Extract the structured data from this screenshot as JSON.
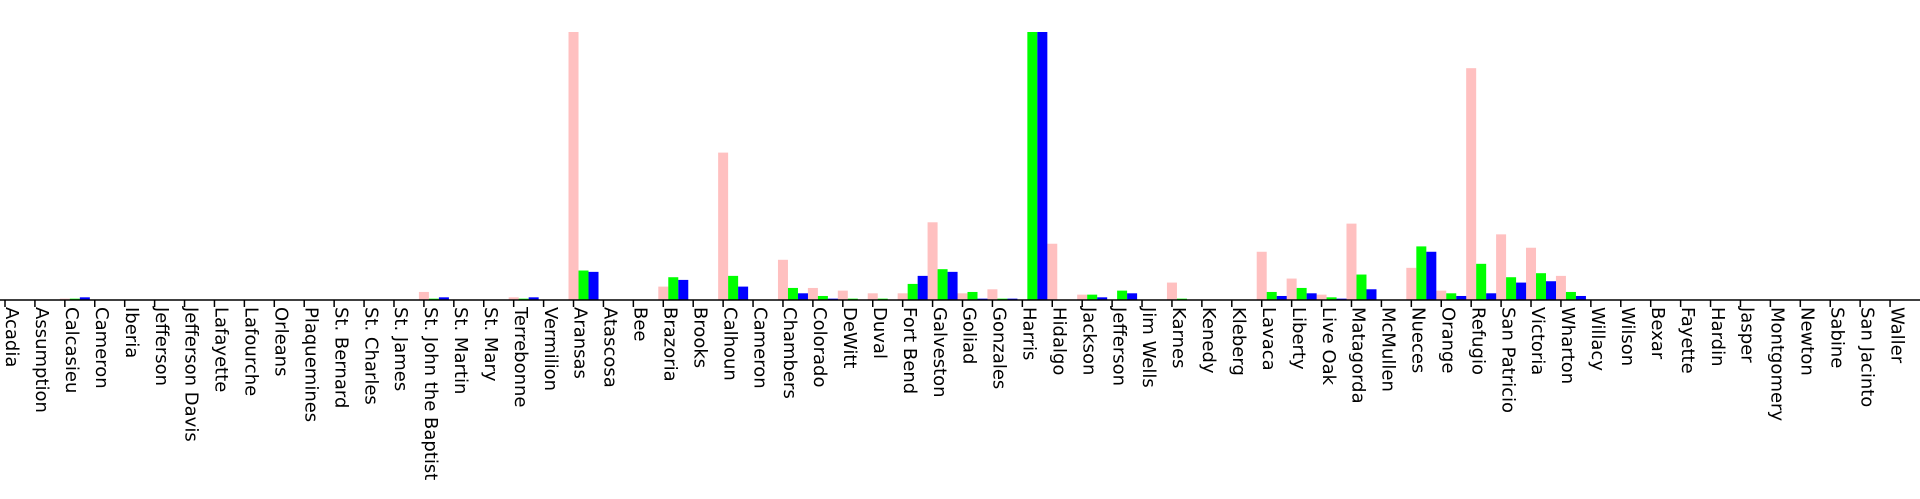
{
  "chart_data": {
    "type": "bar",
    "title": "",
    "xlabel": "",
    "ylabel": "",
    "categories": [
      "Acadia",
      "Assumption",
      "Calcasieu",
      "Cameron",
      "Iberia",
      "Jefferson",
      "Jefferson Davis",
      "Lafayette",
      "Lafourche",
      "Orleans",
      "Plaquemines",
      "St. Bernard",
      "St. Charles",
      "St. James",
      "St. John the Baptist",
      "St. Martin",
      "St. Mary",
      "Terrebonne",
      "Vermilion",
      "Aransas",
      "Atascosa",
      "Bee",
      "Brazoria",
      "Brooks",
      "Calhoun",
      "Cameron",
      "Chambers",
      "Colorado",
      "DeWitt",
      "Duval",
      "Fort Bend",
      "Galveston",
      "Goliad",
      "Gonzales",
      "Harris",
      "Hidalgo",
      "Jackson",
      "Jefferson",
      "Jim Wells",
      "Karnes",
      "Kenedy",
      "Kleberg",
      "Lavaca",
      "Liberty",
      "Live Oak",
      "Matagorda",
      "McMullen",
      "Nueces",
      "Orange",
      "Refugio",
      "San Patricio",
      "Victoria",
      "Wharton",
      "Willacy",
      "Wilson",
      "Bexar",
      "Fayette",
      "Hardin",
      "Jasper",
      "Montgomery",
      "Newton",
      "Sabine",
      "San Jacinto",
      "Waller"
    ],
    "series": [
      {
        "color": "#ffc0c0",
        "values": [
          0,
          0,
          0.5,
          0,
          0,
          0,
          0,
          0,
          0,
          0,
          0,
          0,
          0,
          0,
          3,
          0,
          0,
          1,
          0,
          100,
          0,
          0,
          5,
          0,
          55,
          0,
          15,
          4.5,
          3.5,
          2.5,
          2.5,
          29,
          2.5,
          4,
          0,
          21,
          2,
          0,
          0,
          6.5,
          0,
          0,
          18,
          8,
          2,
          28.5,
          0,
          12,
          3.5,
          86.5,
          24.5,
          19.5,
          9,
          0,
          0,
          0,
          0,
          0,
          0,
          0,
          0,
          0,
          0,
          0
        ]
      },
      {
        "color": "#00ff00",
        "values": [
          0,
          0,
          0.5,
          0,
          0,
          0,
          0,
          0,
          0,
          0,
          0,
          0,
          0,
          0,
          0.5,
          0,
          0,
          0.5,
          0,
          11,
          0,
          0,
          8.5,
          0,
          9,
          0,
          4.5,
          1.5,
          0.5,
          0.5,
          6,
          11.5,
          3,
          0.5,
          100,
          0,
          2,
          3.5,
          0,
          0.5,
          0,
          0,
          3,
          4.5,
          1,
          9.5,
          0,
          20,
          2.5,
          13.5,
          8.5,
          10,
          3,
          0,
          0,
          0,
          0,
          0,
          0,
          0,
          0,
          0,
          0,
          0
        ]
      },
      {
        "color": "#0000ff",
        "values": [
          0,
          0,
          1,
          0,
          0,
          0,
          0,
          0,
          0,
          0,
          0,
          0,
          0,
          0,
          1,
          0,
          0,
          1,
          0,
          10.5,
          0,
          0,
          7.5,
          0,
          5,
          0,
          2.5,
          0.5,
          0,
          0,
          9,
          10.5,
          0.5,
          0.5,
          100,
          0,
          1,
          2.5,
          0,
          0,
          0,
          0,
          1.5,
          2.5,
          0.5,
          4,
          0,
          18,
          1.5,
          2.5,
          6.5,
          7,
          1.5,
          0,
          0,
          0,
          0,
          0,
          0,
          0,
          0,
          0,
          0,
          0
        ]
      }
    ],
    "grid": false,
    "legend": "none"
  }
}
